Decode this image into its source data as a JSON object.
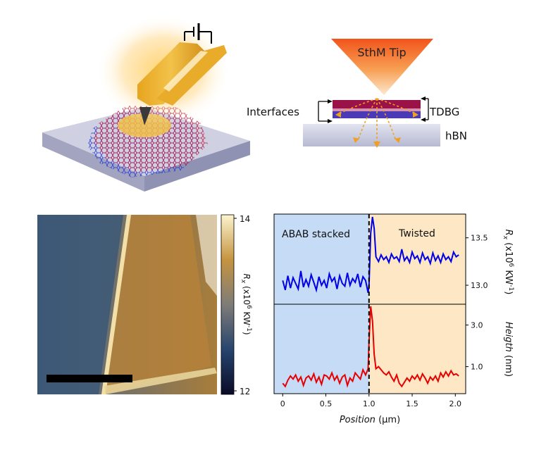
{
  "schematic_left": {},
  "schematic_right": {
    "tip_label": "SthM Tip",
    "interfaces_label": "Interfaces",
    "tdbg_label": "TDBG",
    "hbn_label": "hBN"
  },
  "colorbar": {
    "max_label": "14",
    "min_label": "12",
    "label_main": "R",
    "label_sub": "x",
    "label_rest": " (x10",
    "label_exp": "6",
    "label_unit": " KW",
    "label_unit_exp": "-1",
    "label_close": ")"
  },
  "map_image": {
    "scale_bar": "black horizontal bar (no text)"
  },
  "chart_data": [
    {
      "type": "line",
      "panel": "top",
      "region_left_label": "ABAB stacked",
      "region_right_label": "Twisted",
      "region_left_color": "#c6dbf6",
      "region_right_color": "#fde7c4",
      "boundary_x": 1.0,
      "ylabel": "Rx (x10^6 KW^-1)",
      "ylabel_parts": {
        "main": "R",
        "sub": "x",
        "rest": " (x10",
        "exp": "6",
        "unit": " KW",
        "unit_exp": "-1",
        "close": ")"
      },
      "y_ticks": [
        "13.5",
        "13.0"
      ],
      "y_tick_values": [
        13.5,
        13.0
      ],
      "ylim": [
        12.8,
        13.75
      ],
      "series": [
        {
          "color": "#0000e6",
          "x": [
            0.0,
            0.03,
            0.06,
            0.09,
            0.12,
            0.15,
            0.18,
            0.21,
            0.24,
            0.27,
            0.3,
            0.33,
            0.36,
            0.39,
            0.42,
            0.45,
            0.48,
            0.51,
            0.54,
            0.57,
            0.6,
            0.63,
            0.66,
            0.69,
            0.72,
            0.75,
            0.78,
            0.81,
            0.84,
            0.87,
            0.9,
            0.93,
            0.96,
            0.99,
            1.0,
            1.02,
            1.04,
            1.06,
            1.08,
            1.11,
            1.14,
            1.17,
            1.2,
            1.23,
            1.26,
            1.29,
            1.32,
            1.35,
            1.38,
            1.41,
            1.44,
            1.47,
            1.5,
            1.53,
            1.56,
            1.59,
            1.62,
            1.65,
            1.68,
            1.71,
            1.74,
            1.77,
            1.8,
            1.83,
            1.86,
            1.89,
            1.92,
            1.95,
            1.98,
            2.01,
            2.04
          ],
          "y": [
            13.05,
            12.95,
            13.1,
            12.97,
            13.08,
            13.02,
            12.96,
            13.15,
            12.98,
            13.06,
            12.99,
            13.11,
            13.03,
            12.95,
            13.09,
            13.0,
            13.05,
            12.97,
            13.12,
            13.04,
            13.08,
            12.96,
            13.1,
            13.02,
            12.99,
            13.13,
            13.0,
            13.07,
            13.03,
            13.12,
            12.98,
            13.09,
            13.05,
            12.92,
            13.0,
            13.55,
            13.72,
            13.6,
            13.3,
            13.25,
            13.32,
            13.27,
            13.3,
            13.24,
            13.33,
            13.28,
            13.3,
            13.25,
            13.38,
            13.26,
            13.3,
            13.24,
            13.35,
            13.28,
            13.31,
            13.24,
            13.34,
            13.27,
            13.3,
            13.23,
            13.34,
            13.26,
            13.31,
            13.24,
            13.33,
            13.27,
            13.3,
            13.25,
            13.35,
            13.3,
            13.32
          ]
        }
      ]
    },
    {
      "type": "line",
      "panel": "bottom",
      "region_left_color": "#c6dbf6",
      "region_right_color": "#fde7c4",
      "boundary_x": 1.0,
      "xlabel": "Position (μm)",
      "xlabel_parts": {
        "italic": "Position",
        "rest": " (μm)"
      },
      "x_ticks": [
        "0",
        "0.5",
        "1.0",
        "1.5",
        "2.0"
      ],
      "x_tick_values": [
        0,
        0.5,
        1.0,
        1.5,
        2.0
      ],
      "xlim": [
        -0.1,
        2.12
      ],
      "ylabel": "Heigth (nm)",
      "ylabel_parts": {
        "italic": "Heigth",
        "rest": " (nm)"
      },
      "y_ticks": [
        "3.0",
        "1.0"
      ],
      "y_tick_values": [
        3.0,
        1.0
      ],
      "ylim": [
        -0.3,
        4.0
      ],
      "series": [
        {
          "color": "#e60000",
          "x": [
            0.0,
            0.03,
            0.06,
            0.09,
            0.12,
            0.15,
            0.18,
            0.21,
            0.24,
            0.27,
            0.3,
            0.33,
            0.36,
            0.39,
            0.42,
            0.45,
            0.48,
            0.51,
            0.54,
            0.57,
            0.6,
            0.63,
            0.66,
            0.69,
            0.72,
            0.75,
            0.78,
            0.81,
            0.84,
            0.87,
            0.9,
            0.93,
            0.96,
            0.99,
            1.0,
            1.02,
            1.04,
            1.06,
            1.08,
            1.11,
            1.14,
            1.17,
            1.2,
            1.23,
            1.26,
            1.29,
            1.32,
            1.35,
            1.38,
            1.41,
            1.44,
            1.47,
            1.5,
            1.53,
            1.56,
            1.59,
            1.62,
            1.65,
            1.68,
            1.71,
            1.74,
            1.77,
            1.8,
            1.83,
            1.86,
            1.89,
            1.92,
            1.95,
            1.98,
            2.01,
            2.04
          ],
          "y": [
            0.2,
            0.05,
            0.35,
            0.55,
            0.4,
            0.6,
            0.3,
            0.5,
            0.1,
            0.45,
            0.55,
            0.35,
            0.65,
            0.25,
            0.5,
            0.15,
            0.6,
            0.55,
            0.4,
            0.7,
            0.35,
            0.55,
            0.2,
            0.5,
            0.6,
            0.1,
            0.45,
            0.3,
            0.7,
            0.55,
            0.4,
            0.85,
            0.6,
            0.9,
            2.2,
            3.9,
            3.2,
            1.6,
            0.9,
            1.0,
            0.85,
            0.7,
            0.6,
            0.75,
            0.5,
            0.3,
            0.6,
            0.2,
            0.05,
            0.25,
            0.45,
            0.3,
            0.55,
            0.4,
            0.6,
            0.35,
            0.65,
            0.45,
            0.2,
            0.5,
            0.35,
            0.55,
            0.3,
            0.7,
            0.5,
            0.75,
            0.55,
            0.8,
            0.6,
            0.65,
            0.55
          ]
        }
      ]
    }
  ]
}
